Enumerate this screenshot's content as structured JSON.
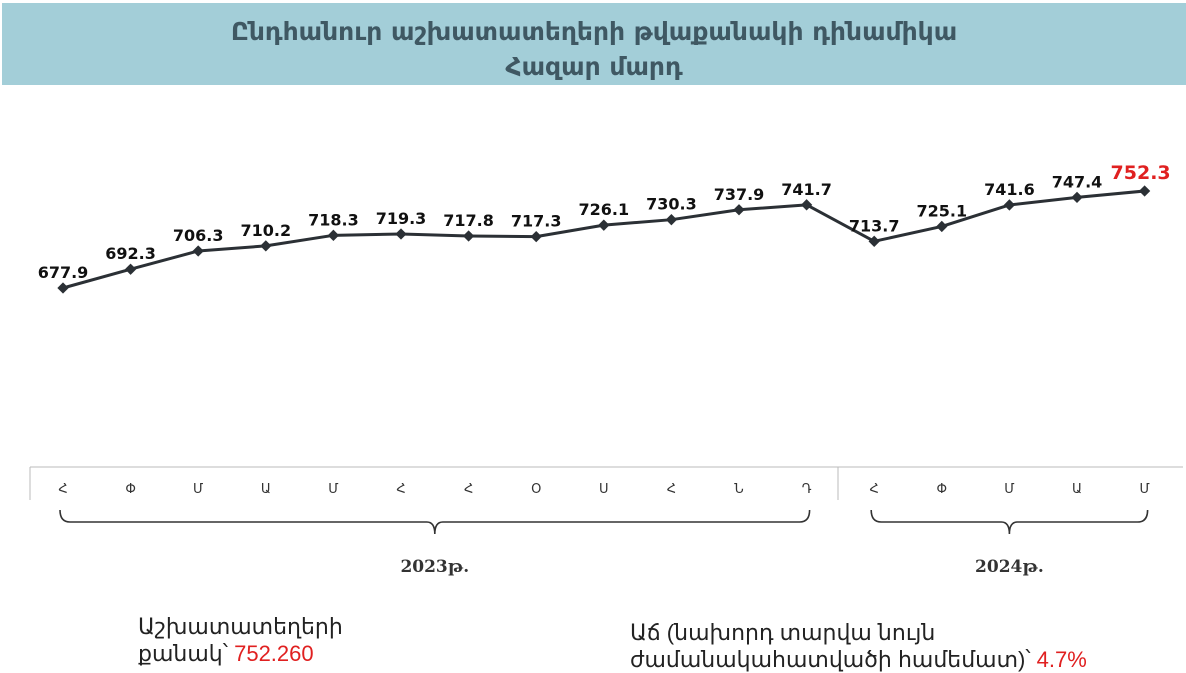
{
  "title": {
    "line1": "Ընդհանուր աշխատատեղերի թվաքանակի դինամիկա",
    "line2": "Հազար մարդ"
  },
  "chart_data": {
    "type": "line",
    "title": "Ընդհանուր աշխատատեղերի թվաքանակի դինամիկա",
    "subtitle": "Հազար մարդ",
    "categories": [
      "Հ",
      "Փ",
      "Մ",
      "Ա",
      "Մ",
      "Հ",
      "Հ",
      "Օ",
      "Ս",
      "Հ",
      "Ն",
      "Դ",
      "Հ",
      "Փ",
      "Մ",
      "Ա",
      "Մ"
    ],
    "values": [
      677.9,
      692.3,
      706.3,
      710.2,
      718.3,
      719.3,
      717.8,
      717.3,
      726.1,
      730.3,
      737.9,
      741.7,
      713.7,
      725.1,
      741.6,
      747.4,
      752.3
    ],
    "value_labels": [
      "677.9",
      "692.3",
      "706.3",
      "710.2",
      "718.3",
      "719.3",
      "717.8",
      "717.3",
      "726.1",
      "730.3",
      "737.9",
      "741.7",
      "713.7",
      "725.1",
      "741.6",
      "747.4",
      "752.3"
    ],
    "year_groups": [
      {
        "label": "2023թ.",
        "count": 12
      },
      {
        "label": "2024թ.",
        "count": 5
      }
    ],
    "highlight_last": true,
    "colors": {
      "line": "#2b3035",
      "highlight": "#e02020",
      "axis": "#bbbbbb"
    }
  },
  "footer": {
    "count_label_line1": "Աշխատատեղերի",
    "count_label_line2": "քանակ՝ ",
    "count_value": "752.260",
    "growth_label_line1": "Աճ (նախորդ տարվա նույն",
    "growth_label_line2": "ժամանակահատվածի համեմատ)՝ ",
    "growth_value": "4.7%"
  }
}
